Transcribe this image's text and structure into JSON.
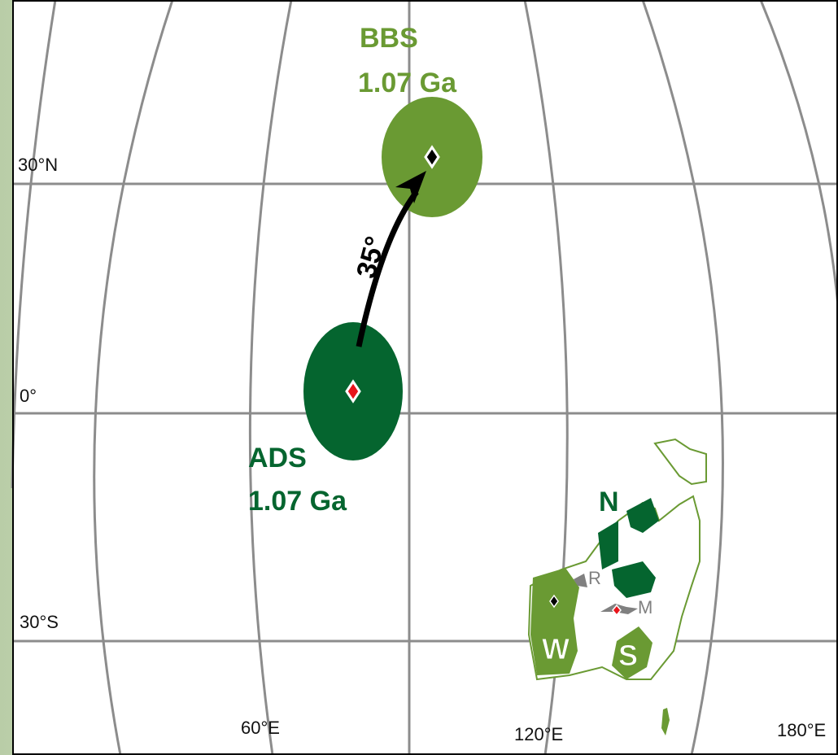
{
  "map": {
    "colors": {
      "bbs_green": "#6a9a33",
      "ads_green": "#05652f",
      "grid": "#8c8c8c",
      "terrane_grey": "#808080",
      "arrow": "#000000",
      "pole_marker_red": "#e8141b",
      "pole_marker_black": "#000000"
    },
    "axes": {
      "lat_labels": [
        {
          "text": "30°N",
          "lat": 30
        },
        {
          "text": "0°",
          "lat": 0
        },
        {
          "text": "30°S",
          "lat": -30
        }
      ],
      "lon_labels": [
        {
          "text": "60°E",
          "lon": 60
        },
        {
          "text": "120°E",
          "lon": 120
        },
        {
          "text": "180°E",
          "lon": 180
        }
      ]
    },
    "poles": [
      {
        "name": "BBS",
        "age": "1.07 Ga",
        "color_key": "bbs_green",
        "marker": "black"
      },
      {
        "name": "ADS",
        "age": "1.07 Ga",
        "color_key": "ads_green",
        "marker": "red"
      }
    ],
    "rotation": {
      "label": "35°"
    },
    "blocks": [
      {
        "label": "N",
        "color_key": "ads_green"
      },
      {
        "label": "W",
        "color_key": "bbs_green"
      },
      {
        "label": "S",
        "color_key": "bbs_green"
      },
      {
        "label": "R",
        "color_key": "terrane_grey"
      },
      {
        "label": "M",
        "color_key": "terrane_grey"
      }
    ]
  }
}
